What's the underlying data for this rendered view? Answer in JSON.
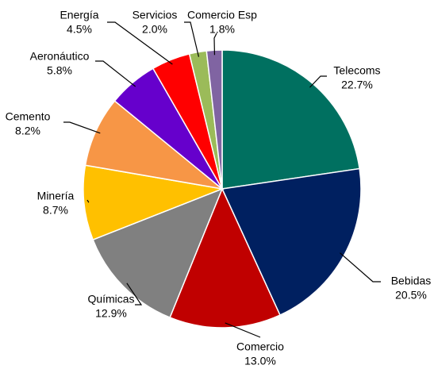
{
  "chart_data": {
    "type": "pie",
    "categories": [
      "Telecoms",
      "Bebidas",
      "Comercio",
      "Químicas",
      "Minería",
      "Cemento",
      "Aeronáutico",
      "Energía",
      "Servicios",
      "Comercio Esp"
    ],
    "values": [
      22.7,
      20.5,
      13.0,
      12.9,
      8.7,
      8.2,
      5.8,
      4.5,
      2.0,
      1.8
    ],
    "value_labels": [
      "22.7%",
      "20.5%",
      "13.0%",
      "12.9%",
      "8.7%",
      "8.2%",
      "5.8%",
      "4.5%",
      "2.0%",
      "1.8%"
    ],
    "colors": [
      "#007060",
      "#002060",
      "#c00000",
      "#808080",
      "#ffc000",
      "#f79646",
      "#6600cc",
      "#ff0000",
      "#9bbb59",
      "#8064a2"
    ]
  }
}
